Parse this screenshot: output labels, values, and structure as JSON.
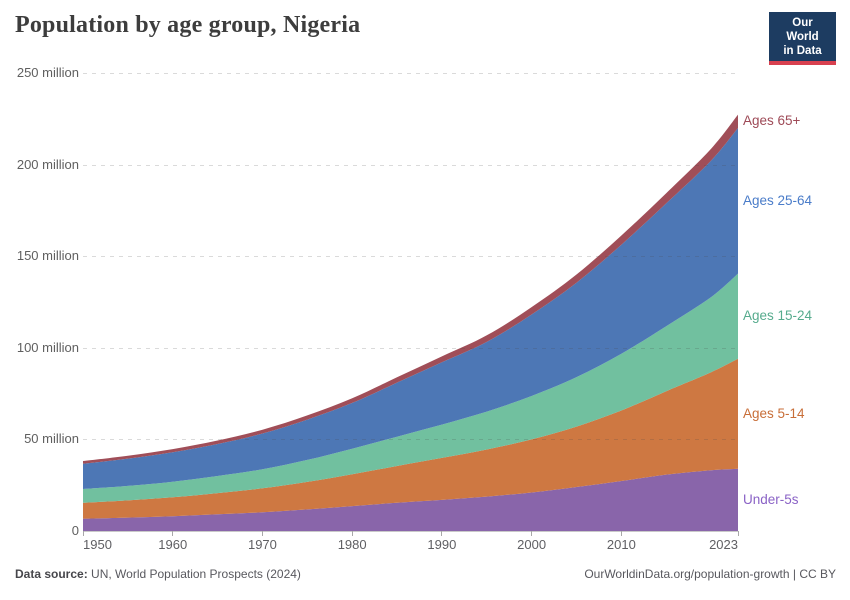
{
  "header": {
    "title": "Population by age group, Nigeria"
  },
  "logo": {
    "line1": "Our World",
    "line2": "in Data",
    "bg_color": "#1d3c61",
    "accent_color": "#d8404f"
  },
  "footer": {
    "source_label": "Data source:",
    "source_value": "UN, World Population Prospects (2024)",
    "attribution": "OurWorldinData.org/population-growth | CC BY"
  },
  "colors": {
    "grid": "#dadada",
    "axis_text": "#5f5f5f",
    "title_text": "#3d3d3d",
    "footer_text": "#58585e"
  },
  "chart_data": {
    "type": "area",
    "stacked": true,
    "title": "Population by age group, Nigeria",
    "unit": "million people",
    "grid": "dashed-horizontal",
    "legend_position": "right-of-plot",
    "xlim": [
      1950,
      2023
    ],
    "ylim": [
      0,
      250
    ],
    "x": [
      1950,
      1955,
      1960,
      1965,
      1970,
      1975,
      1980,
      1985,
      1990,
      1995,
      2000,
      2005,
      2010,
      2015,
      2020,
      2023
    ],
    "x_ticks": [
      {
        "value": 1950,
        "label": "1950"
      },
      {
        "value": 1960,
        "label": "1960"
      },
      {
        "value": 1970,
        "label": "1970"
      },
      {
        "value": 1980,
        "label": "1980"
      },
      {
        "value": 1990,
        "label": "1990"
      },
      {
        "value": 2000,
        "label": "2000"
      },
      {
        "value": 2010,
        "label": "2010"
      },
      {
        "value": 2023,
        "label": "2023"
      }
    ],
    "y_ticks": [
      {
        "value": 0,
        "label": "0"
      },
      {
        "value": 50,
        "label": "50 million"
      },
      {
        "value": 100,
        "label": "100 million"
      },
      {
        "value": 150,
        "label": "150 million"
      },
      {
        "value": 200,
        "label": "200 million"
      },
      {
        "value": 250,
        "label": "250 million"
      }
    ],
    "series": [
      {
        "name": "Under-5s",
        "color": "#8965aa",
        "label_color": "#8a62c6",
        "values": [
          6.7,
          7.3,
          8.1,
          9.1,
          10.2,
          11.8,
          13.6,
          15.4,
          17.0,
          18.8,
          21.0,
          24.0,
          27.3,
          30.8,
          33.2,
          34.0
        ]
      },
      {
        "name": "Ages 5-14",
        "color": "#ce7842",
        "label_color": "#c86e38",
        "values": [
          8.7,
          9.4,
          10.3,
          11.6,
          13.1,
          15.0,
          17.4,
          20.1,
          22.9,
          25.7,
          29.0,
          33.0,
          38.5,
          45.5,
          53.5,
          60.0
        ]
      },
      {
        "name": "Ages 15-24",
        "color": "#71c09f",
        "label_color": "#56ab8d",
        "values": [
          7.5,
          7.9,
          8.5,
          9.3,
          10.4,
          12.0,
          13.9,
          16.0,
          18.2,
          20.7,
          23.7,
          27.0,
          31.0,
          35.5,
          41.0,
          46.5
        ]
      },
      {
        "name": "Ages 25-64",
        "color": "#4d77b5",
        "label_color": "#4a7cc9",
        "values": [
          13.8,
          14.9,
          16.1,
          17.5,
          19.5,
          22.0,
          25.0,
          29.5,
          34.0,
          38.0,
          44.5,
          51.5,
          59.5,
          67.0,
          74.5,
          79.5
        ]
      },
      {
        "name": "Ages 65+",
        "color": "#a04e58",
        "label_color": "#9e4a57",
        "values": [
          1.5,
          1.6,
          1.7,
          1.9,
          2.1,
          2.3,
          2.6,
          2.9,
          3.2,
          3.6,
          4.0,
          4.5,
          5.0,
          5.6,
          6.5,
          7.3
        ]
      }
    ]
  }
}
